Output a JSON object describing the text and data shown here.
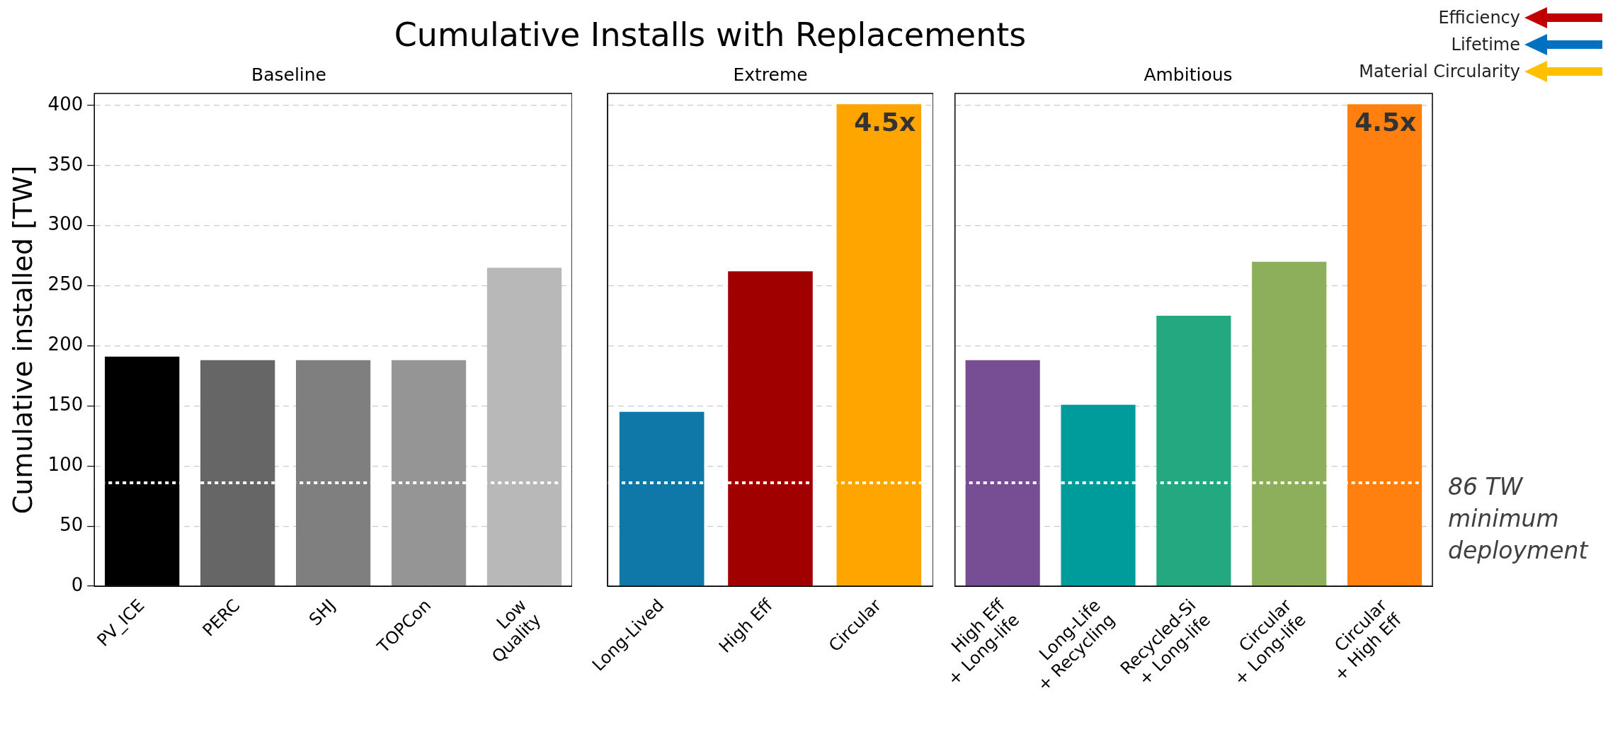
{
  "chart_data": [
    {
      "type": "bar",
      "title": "Cumulative Installs with Replacements",
      "subtitle": "Baseline",
      "ylabel": "Cumulative installed [TW]",
      "categories": [
        "PV_ICE",
        "PERC",
        "SHJ",
        "TOPCon",
        "Low\nQuality"
      ],
      "values": [
        191,
        188,
        188,
        188,
        265
      ],
      "colors": [
        "#000000",
        "#666666",
        "#7f7f7f",
        "#959595",
        "#b8b8b8"
      ],
      "ylim": [
        0,
        410
      ],
      "yticks": [
        0,
        50,
        100,
        150,
        200,
        250,
        300,
        350,
        400
      ],
      "grid": "y",
      "ref_lines": [
        {
          "axis": "y",
          "value": 86,
          "color": "#ffffff",
          "line_style": "dotted"
        }
      ]
    },
    {
      "type": "bar",
      "subtitle": "Extreme",
      "categories": [
        "Long-Lived",
        "High Eff",
        "Circular"
      ],
      "values": [
        145,
        262,
        401
      ],
      "colors": [
        "#1078a8",
        "#a00000",
        "#ffa500"
      ],
      "ylim": [
        0,
        410
      ],
      "yticks": [
        0,
        50,
        100,
        150,
        200,
        250,
        300,
        350,
        400
      ],
      "grid": "y",
      "tick_labels": "x",
      "ref_lines": [
        {
          "axis": "y",
          "value": 86,
          "color": "#ffffff",
          "line_style": "dotted"
        }
      ],
      "annotations": [
        {
          "text": "4.5x",
          "x": "Circular",
          "y": 401
        }
      ]
    },
    {
      "type": "bar",
      "subtitle": "Ambitious",
      "categories": [
        "High Eff\n+ Long-life",
        "Long-Life\n+ Recycling",
        "Recycled-Si\n+ Long-life",
        "Circular\n+ Long-life",
        "Circular\n+ High Eff"
      ],
      "values": [
        188,
        151,
        225,
        270,
        401
      ],
      "colors": [
        "#774e93",
        "#009c9c",
        "#23a87f",
        "#8dae5a",
        "#ff800e"
      ],
      "ylim": [
        0,
        410
      ],
      "yticks": [
        0,
        50,
        100,
        150,
        200,
        250,
        300,
        350,
        400
      ],
      "grid": "y",
      "tick_labels": "x",
      "ref_lines": [
        {
          "axis": "y",
          "value": 86,
          "color": "#ffffff",
          "line_style": "dotted",
          "label": "86 TW minimum deployment"
        }
      ],
      "annotations": [
        {
          "text": "4.5x",
          "x": "Circular\n+ High Eff",
          "y": 401
        },
        "Efficiency",
        "Lifetime",
        "Material Circularity"
      ]
    }
  ]
}
